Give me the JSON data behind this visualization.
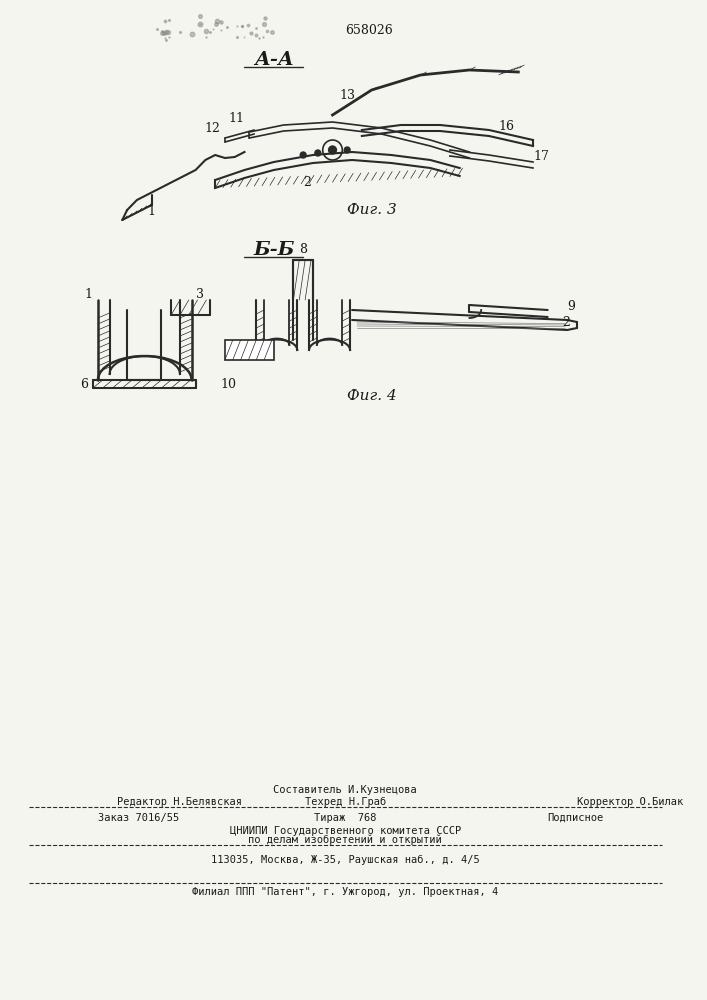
{
  "patent_number": "658026",
  "bg_color": "#f5f5f0",
  "fig3_label": "А-А",
  "fig4_label": "Б-Б",
  "fig3_caption": "Фиг. 3",
  "fig4_caption": "Фиг. 4",
  "footer_line1_left": "Редактор Н.Белявская",
  "footer_line1_center_top": "Составитель И.Кузнецова",
  "footer_line1_center": "Техред Н.Граб",
  "footer_line1_right": "Корректор О.Билак",
  "footer_line2_left": "Заказ 7016/55",
  "footer_line2_center": "Тираж  768",
  "footer_line2_right": "Подписное",
  "footer_line3": "ЦНИИПИ Государственного комитета СССР",
  "footer_line4": "по делам изобретений и открытий",
  "footer_line5": "113035, Москва, Ж-35, Раушская наб., д. 4/5",
  "footer_line6": "Филиал ППП \"Патент\", г. Ужгород, ул. Проектная, 4",
  "text_color": "#1a1a1a",
  "line_color": "#2a2a2a",
  "hatch_color": "#444444"
}
